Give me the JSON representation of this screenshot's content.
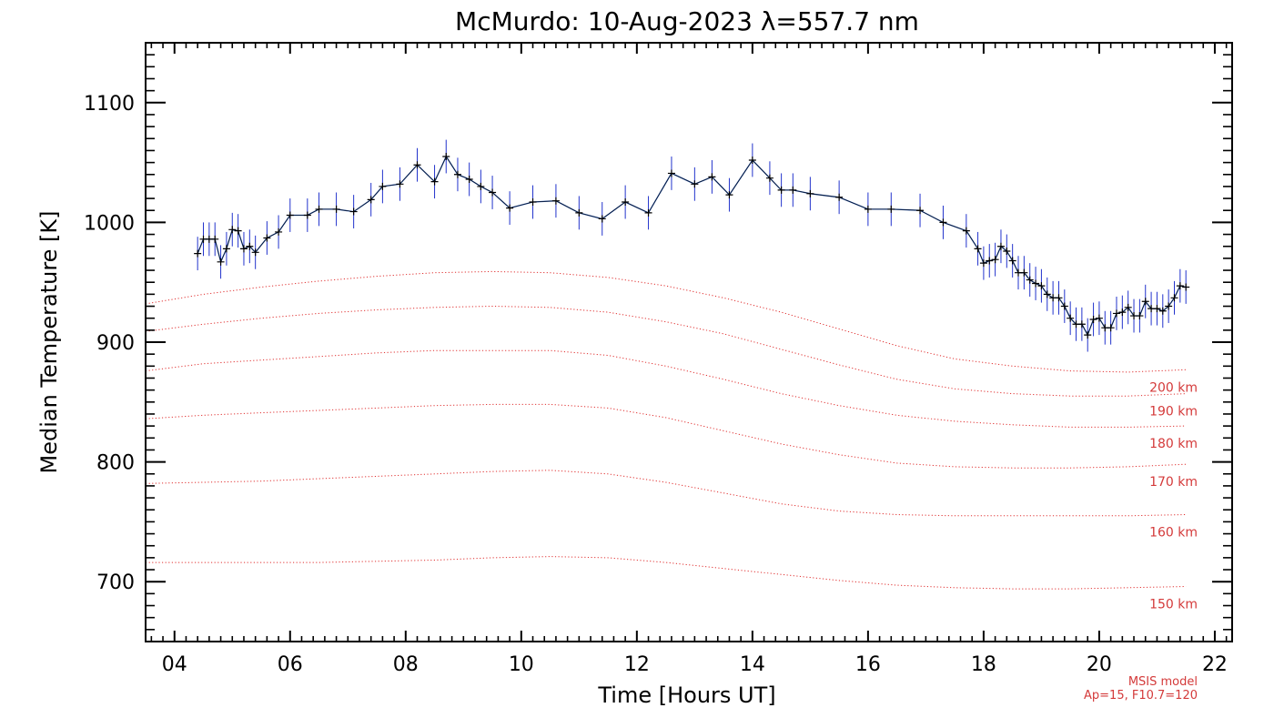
{
  "chart_data": {
    "type": "line",
    "title": "McMurdo: 10-Aug-2023 λ=557.7 nm",
    "xlabel": "Time [Hours UT]",
    "ylabel": "Median Temperature [K]",
    "xlim": [
      3.5,
      22.3
    ],
    "ylim": [
      650,
      1150
    ],
    "xticks": [
      4,
      6,
      8,
      10,
      12,
      14,
      16,
      18,
      20,
      22
    ],
    "xtick_labels": [
      "04",
      "06",
      "08",
      "10",
      "12",
      "14",
      "16",
      "18",
      "20",
      "22"
    ],
    "yticks": [
      700,
      800,
      900,
      1000,
      1100
    ],
    "ytick_labels": [
      "700",
      "800",
      "900",
      "1000",
      "1100"
    ],
    "grid": false,
    "colors": {
      "measured": "#000000",
      "errorbar": "#2233cc",
      "smooth": "#1f4fa8",
      "model": "#e03030"
    },
    "measured": {
      "x": [
        4.4,
        4.5,
        4.6,
        4.7,
        4.8,
        4.9,
        5.0,
        5.1,
        5.2,
        5.3,
        5.4,
        5.6,
        5.8,
        6.0,
        6.3,
        6.5,
        6.8,
        7.1,
        7.4,
        7.6,
        7.9,
        8.2,
        8.5,
        8.7,
        8.9,
        9.1,
        9.3,
        9.5,
        9.8,
        10.2,
        10.6,
        11.0,
        11.4,
        11.8,
        12.2,
        12.6,
        13.0,
        13.3,
        13.6,
        14.0,
        14.3,
        14.5,
        14.7,
        15.0,
        15.5,
        16.0,
        16.4,
        16.9,
        17.3,
        17.7,
        17.9,
        18.0,
        18.1,
        18.2,
        18.3,
        18.4,
        18.5,
        18.6,
        18.7,
        18.8,
        18.9,
        19.0,
        19.1,
        19.2,
        19.3,
        19.4,
        19.5,
        19.6,
        19.7,
        19.8,
        19.9,
        20.0,
        20.1,
        20.2,
        20.3,
        20.4,
        20.5,
        20.6,
        20.7,
        20.8,
        20.9,
        21.0,
        21.1,
        21.2,
        21.3,
        21.4,
        21.5
      ],
      "y": [
        974,
        986,
        986,
        986,
        967,
        978,
        994,
        993,
        978,
        980,
        975,
        987,
        992,
        1006,
        1006,
        1011,
        1011,
        1009,
        1019,
        1030,
        1032,
        1048,
        1034,
        1055,
        1040,
        1036,
        1030,
        1025,
        1012,
        1017,
        1018,
        1008,
        1003,
        1017,
        1008,
        1041,
        1032,
        1038,
        1023,
        1052,
        1037,
        1027,
        1027,
        1024,
        1021,
        1011,
        1011,
        1010,
        1000,
        993,
        978,
        966,
        968,
        969,
        980,
        976,
        968,
        958,
        958,
        952,
        949,
        947,
        940,
        937,
        937,
        930,
        920,
        915,
        915,
        906,
        919,
        920,
        912,
        912,
        924,
        925,
        929,
        922,
        922,
        934,
        928,
        928,
        926,
        930,
        937,
        947,
        946
      ],
      "err": [
        14,
        14,
        14,
        14,
        14,
        14,
        14,
        14,
        14,
        14,
        14,
        14,
        14,
        14,
        14,
        14,
        14,
        14,
        14,
        14,
        14,
        14,
        14,
        14,
        14,
        14,
        14,
        14,
        14,
        14,
        14,
        14,
        14,
        14,
        14,
        14,
        14,
        14,
        14,
        14,
        14,
        14,
        14,
        14,
        14,
        14,
        14,
        14,
        14,
        14,
        14,
        14,
        14,
        14,
        14,
        14,
        14,
        14,
        14,
        14,
        14,
        14,
        14,
        14,
        14,
        14,
        14,
        14,
        14,
        14,
        14,
        14,
        14,
        14,
        14,
        14,
        14,
        14,
        14,
        14,
        14,
        14,
        14,
        14,
        14,
        14,
        14
      ]
    },
    "msis_model": {
      "x": [
        3.5,
        4.5,
        5.5,
        6.5,
        7.5,
        8.5,
        9.5,
        10.5,
        11.5,
        12.5,
        13.5,
        14.5,
        15.5,
        16.5,
        17.5,
        18.5,
        19.5,
        20.5,
        21.5
      ],
      "series": [
        {
          "name": "200 km",
          "values": [
            932,
            940,
            946,
            951,
            955,
            958,
            959,
            958,
            954,
            947,
            937,
            925,
            911,
            897,
            886,
            880,
            876,
            875,
            877
          ]
        },
        {
          "name": "190 km",
          "values": [
            909,
            915,
            920,
            924,
            927,
            929,
            930,
            929,
            925,
            917,
            907,
            894,
            881,
            869,
            861,
            857,
            855,
            855,
            857
          ]
        },
        {
          "name": "180 km",
          "values": [
            876,
            882,
            885,
            888,
            891,
            893,
            893,
            893,
            889,
            880,
            869,
            857,
            847,
            839,
            834,
            831,
            829,
            829,
            830
          ]
        },
        {
          "name": "170 km",
          "values": [
            836,
            839,
            841,
            843,
            845,
            847,
            848,
            848,
            845,
            837,
            826,
            815,
            806,
            799,
            796,
            795,
            795,
            796,
            798
          ]
        },
        {
          "name": "160 km",
          "values": [
            782,
            783,
            784,
            786,
            788,
            790,
            792,
            793,
            790,
            783,
            774,
            765,
            759,
            756,
            755,
            755,
            755,
            755,
            756
          ]
        },
        {
          "name": "150 km",
          "values": [
            716,
            716,
            716,
            716,
            717,
            718,
            720,
            721,
            720,
            716,
            711,
            706,
            701,
            697,
            695,
            694,
            694,
            695,
            696
          ]
        }
      ]
    },
    "annotation": [
      "MSIS model",
      "Ap=15, F10.7=120"
    ]
  }
}
